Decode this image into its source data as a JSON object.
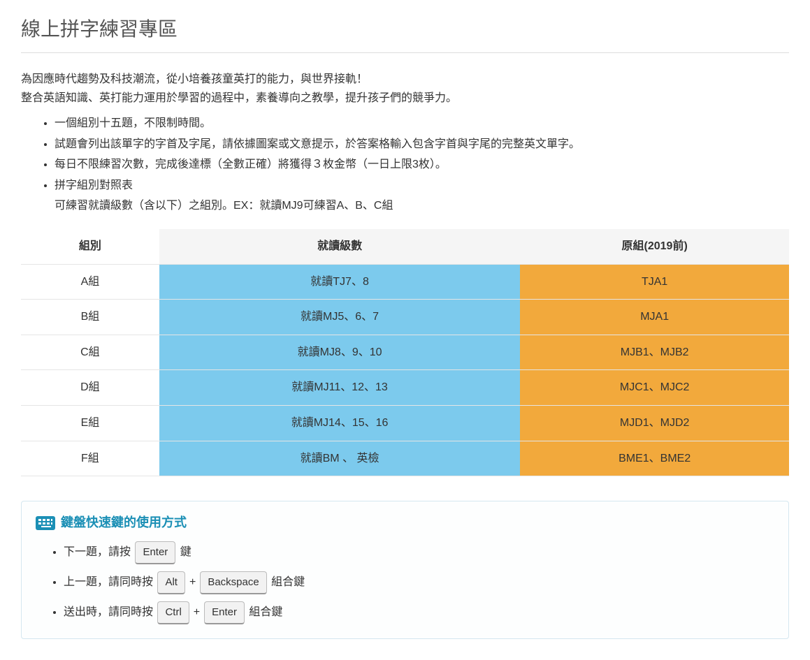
{
  "title": "線上拼字練習專區",
  "intro": {
    "line1": "為因應時代趨勢及科技潮流，從小培養孩童英打的能力，與世界接軌！",
    "line2": "整合英語知識、英打能力運用於學習的過程中，素養導向之教學，提升孩子們的競爭力。"
  },
  "rules": [
    "一個組別十五題，不限制時間。",
    "試題會列出該單字的字首及字尾，請依據圖案或文意提示，於答案格輸入包含字首與字尾的完整英文單字。",
    "每日不限練習次數，完成後達標（全數正確）將獲得３枚金幣（一日上限3枚）。",
    "拼字組別對照表"
  ],
  "rules_subnote": "可練習就讀級數（含以下）之組別。EX：就讀MJ9可練習A、B、C組",
  "table": {
    "headers": [
      "組別",
      "就讀級數",
      "原組(2019前)"
    ],
    "col2_bg": "#7ccaed",
    "col3_bg": "#f2a93c",
    "rows": [
      {
        "group": "A組",
        "level": "就讀TJ7、8",
        "orig": "TJA1"
      },
      {
        "group": "B組",
        "level": "就讀MJ5、6、7",
        "orig": "MJA1"
      },
      {
        "group": "C組",
        "level": "就讀MJ8、9、10",
        "orig": "MJB1、MJB2"
      },
      {
        "group": "D組",
        "level": "就讀MJ11、12、13",
        "orig": "MJC1、MJC2"
      },
      {
        "group": "E組",
        "level": "就讀MJ14、15、16",
        "orig": "MJD1、MJD2"
      },
      {
        "group": "F組",
        "level": "就讀BM 、 英檢",
        "orig": "BME1、BME2"
      }
    ]
  },
  "shortcuts": {
    "title": "鍵盤快速鍵的使用方式",
    "items": [
      {
        "prefix": "下一題，請按 ",
        "keys": [
          "Enter"
        ],
        "suffix": " 鍵"
      },
      {
        "prefix": "上一題，請同時按 ",
        "keys": [
          "Alt",
          "Backspace"
        ],
        "suffix": " 組合鍵"
      },
      {
        "prefix": "送出時，請同時按 ",
        "keys": [
          "Ctrl",
          "Enter"
        ],
        "suffix": " 組合鍵"
      }
    ]
  }
}
